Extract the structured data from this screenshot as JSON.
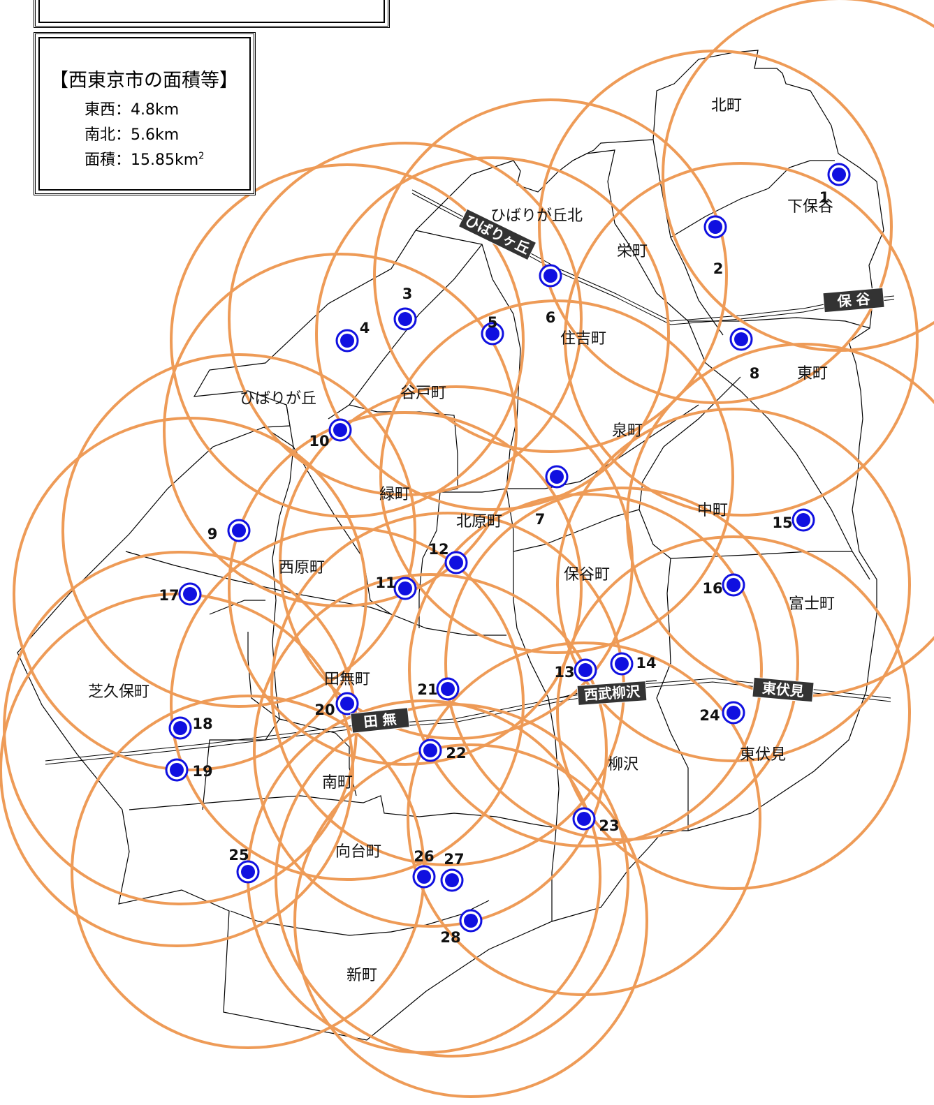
{
  "info": {
    "title": "【西東京市の面積等】",
    "east_west": "東西：4.8km",
    "north_south": "南北：5.6km",
    "area": "面積：15.85km",
    "area_sup": "2"
  },
  "towns": [
    "北町",
    "下保谷",
    "ひばりが丘北",
    "栄町",
    "住吉町",
    "東町",
    "ひばりが丘",
    "谷戸町",
    "泉町",
    "緑町",
    "北原町",
    "中町",
    "西原町",
    "保谷町",
    "富士町",
    "芝久保町",
    "田無町",
    "東伏見",
    "柳沢",
    "南町",
    "向台町",
    "新町"
  ],
  "stations": [
    "ひばりヶ丘",
    "保 谷",
    "西武柳沢",
    "田 無",
    "東伏見"
  ],
  "sites": [
    "1",
    "2",
    "3",
    "4",
    "5",
    "6",
    "7",
    "8",
    "9",
    "10",
    "11",
    "12",
    "13",
    "14",
    "15",
    "16",
    "17",
    "18",
    "19",
    "20",
    "21",
    "22",
    "23",
    "24",
    "25",
    "26",
    "27",
    "28"
  ],
  "colors": {
    "coverage_circle": "#ee9b57",
    "site_marker": "#1010e0",
    "boundary": "#000000",
    "station_label_bg": "#333333",
    "station_label_text": "#ffffff"
  }
}
